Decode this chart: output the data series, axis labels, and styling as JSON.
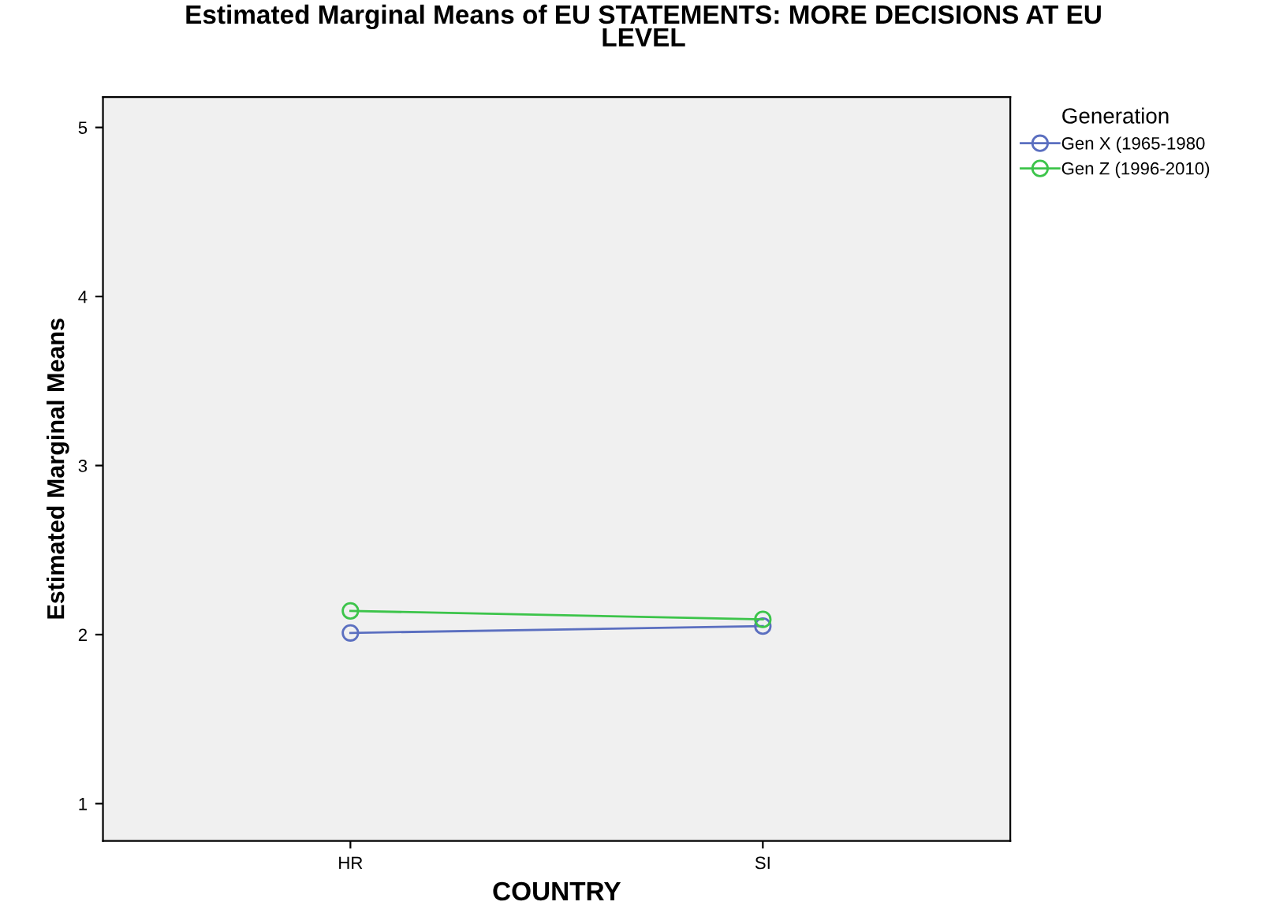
{
  "chart_data": {
    "type": "line",
    "title": "Estimated Marginal Means of EU STATEMENTS: MORE DECISIONS AT EU\nLEVEL",
    "xlabel": "COUNTRY",
    "ylabel": "Estimated Marginal Means",
    "legend_title": "Generation",
    "categories": [
      "HR",
      "SI"
    ],
    "series": [
      {
        "name": "Gen X (1965-1980",
        "color": "#5b6fc0",
        "values": [
          2.01,
          2.05
        ]
      },
      {
        "name": "Gen Z (1996-2010)",
        "color": "#3cc44a",
        "values": [
          2.14,
          2.09
        ]
      }
    ],
    "ylim": [
      0.78,
      5.18
    ],
    "yticks": [
      1,
      2,
      3,
      4,
      5
    ],
    "grid": false,
    "legend": "top right",
    "marker": "circle",
    "line_style": "solid"
  }
}
